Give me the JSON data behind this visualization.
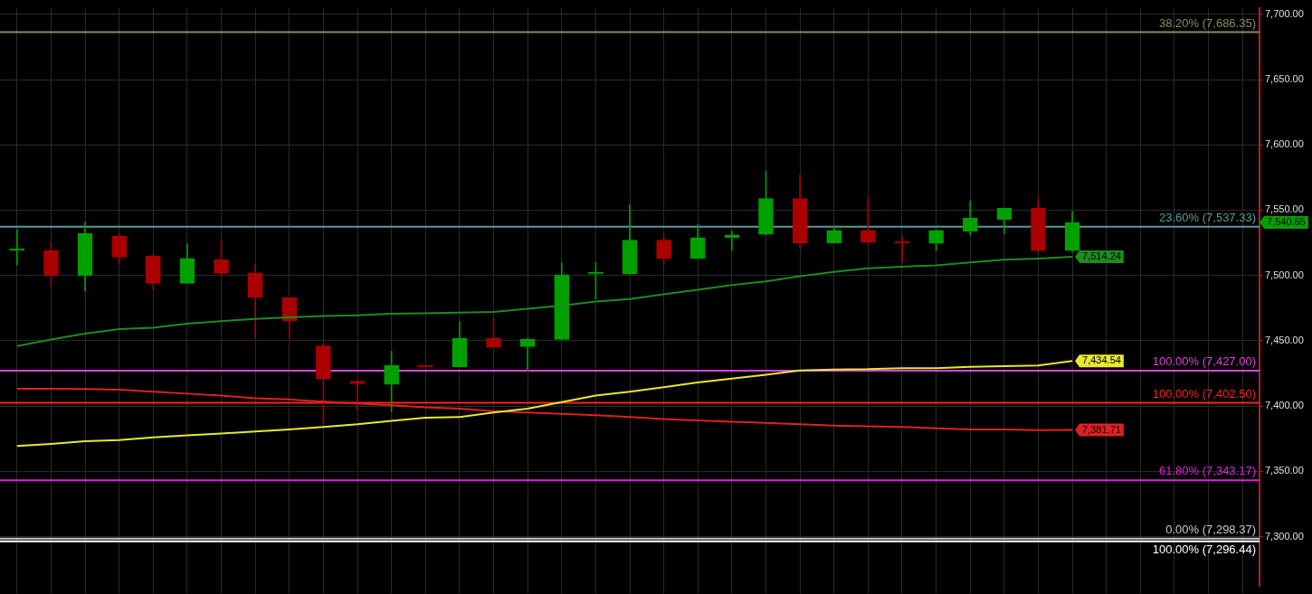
{
  "chart_data": {
    "type": "candlestick",
    "categories": [
      null,
      null,
      null,
      null,
      null,
      null,
      null,
      null,
      null,
      null,
      null,
      null,
      null,
      null,
      null,
      null,
      null,
      null,
      null,
      null,
      null,
      null,
      null,
      null,
      null,
      null,
      null,
      null,
      null,
      null,
      null,
      null,
      null,
      null,
      null,
      null,
      null
    ],
    "ohlc": [
      [
        7519,
        7535,
        7508,
        7519.5
      ],
      [
        7519,
        7526,
        7491.5,
        7500
      ],
      [
        7500,
        7541,
        7488,
        7532
      ],
      [
        7530,
        7532,
        7509,
        7514
      ],
      [
        7515,
        7516,
        7489,
        7494
      ],
      [
        7494,
        7524.5,
        7494,
        7513
      ],
      [
        7512,
        7527,
        7499.5,
        7501.5
      ],
      [
        7502,
        7508.5,
        7452,
        7483
      ],
      [
        7483,
        7483,
        7452,
        7465
      ],
      [
        7446,
        7448,
        7387,
        7420.5
      ],
      [
        7419,
        7419,
        7397,
        7417
      ],
      [
        7416.5,
        7442,
        7395.5,
        7431
      ],
      [
        7430.5,
        7430.5,
        7430,
        7430
      ],
      [
        7430,
        7464.5,
        7430,
        7452
      ],
      [
        7452,
        7467,
        7445,
        7445
      ],
      [
        7445.5,
        7452,
        7427,
        7451
      ],
      [
        7451,
        7510,
        7451,
        7500.5
      ],
      [
        7501,
        7510,
        7482,
        7501.5
      ],
      [
        7501,
        7554,
        7501,
        7527
      ],
      [
        7527,
        7531,
        7509,
        7513
      ],
      [
        7513,
        7539,
        7513,
        7529
      ],
      [
        7529,
        7534,
        7519,
        7531
      ],
      [
        7531.5,
        7580,
        7531,
        7559
      ],
      [
        7559,
        7577,
        7521,
        7525
      ],
      [
        7525,
        7538,
        7525,
        7534.5
      ],
      [
        7534.5,
        7559,
        7525,
        7525.5
      ],
      [
        7526,
        7530,
        7510,
        7524.5
      ],
      [
        7524.5,
        7535,
        7519,
        7534.5
      ],
      [
        7534,
        7557,
        7531,
        7544
      ],
      [
        7543,
        7551.5,
        7532,
        7551.5
      ],
      [
        7551.5,
        7559,
        7518,
        7519
      ],
      [
        7519,
        7549,
        7518,
        7540.65
      ],
      null,
      null,
      null,
      null,
      null
    ],
    "colors": [
      "#00a000",
      "#aa0000",
      "#00a000",
      "#aa0000",
      "#aa0000",
      "#00a000",
      "#aa0000",
      "#aa0000",
      "#aa0000",
      "#aa0000",
      "#aa0000",
      "#00a000",
      "#aa0000",
      "#00a000",
      "#aa0000",
      "#00a000",
      "#00a000",
      "#00a000",
      "#00a000",
      "#aa0000",
      "#00a000",
      "#00a000",
      "#00a000",
      "#aa0000",
      "#00a000",
      "#aa0000",
      "#aa0000",
      "#00a000",
      "#00a000",
      "#00a000",
      "#aa0000",
      "#00a000",
      null,
      null,
      null,
      null,
      null
    ],
    "series": [
      {
        "type": "line",
        "color": "#1f8a1f",
        "values": [
          7446,
          7451,
          7455.5,
          7459,
          7460,
          7463,
          7465,
          7466.7,
          7468,
          7469,
          7469.5,
          7470.7,
          7471,
          7471.5,
          7472,
          7474.5,
          7477,
          7480,
          7482,
          7485.5,
          7489,
          7492.7,
          7495.5,
          7499.5,
          7502.7,
          7505.5,
          7506.7,
          7507.8,
          7510,
          7512,
          7513,
          7514.24,
          null,
          null,
          null,
          null,
          null
        ],
        "value_labels": [
          null,
          null,
          null,
          null,
          null,
          null,
          null,
          null,
          null,
          null,
          null,
          null,
          null,
          null,
          null,
          null,
          null,
          null,
          null,
          null,
          null,
          null,
          null,
          null,
          null,
          null,
          null,
          null,
          null,
          null,
          null,
          "7,514.24",
          null,
          null,
          null,
          null,
          null
        ]
      },
      {
        "type": "line",
        "color": "#e8e830",
        "values": [
          7369.5,
          7371,
          7373,
          7374,
          7376,
          7377.5,
          7379,
          7380.5,
          7382,
          7384,
          7386,
          7388.7,
          7391,
          7391.5,
          7395,
          7398,
          7403,
          7408,
          7411,
          7414.5,
          7418,
          7421,
          7424,
          7427.3,
          7428,
          7428.2,
          7429,
          7429,
          7430,
          7430.5,
          7431,
          7434.54,
          null,
          null,
          null,
          null,
          null
        ],
        "value_labels": [
          null,
          null,
          null,
          null,
          null,
          null,
          null,
          null,
          null,
          null,
          null,
          null,
          null,
          null,
          null,
          null,
          null,
          null,
          null,
          null,
          null,
          null,
          null,
          null,
          null,
          null,
          null,
          null,
          null,
          null,
          null,
          "7,434.54",
          null,
          null,
          null,
          null,
          null
        ]
      },
      {
        "type": "line",
        "color": "#e02020",
        "values": [
          7413.3,
          7413.3,
          7413,
          7412.5,
          7411,
          7409.5,
          7408,
          7406,
          7405,
          7403.3,
          7402,
          7400.5,
          7399,
          7398,
          7396,
          7395,
          7394,
          7393,
          7391.5,
          7390,
          7389,
          7388,
          7387,
          7386,
          7385,
          7384.5,
          7384,
          7383,
          7382,
          7382,
          7381.5,
          7381.71,
          null,
          null,
          null,
          null,
          null
        ],
        "value_labels": [
          null,
          null,
          null,
          null,
          null,
          null,
          null,
          null,
          null,
          null,
          null,
          null,
          null,
          null,
          null,
          null,
          null,
          null,
          null,
          null,
          null,
          null,
          null,
          null,
          null,
          null,
          null,
          null,
          null,
          null,
          null,
          "7,381.71",
          null,
          null,
          null,
          null,
          null
        ]
      }
    ],
    "ref_lines": [
      {
        "axis": "y",
        "value": 7686.35,
        "label": "38.20% (7,686.35)",
        "color": "#8c8c5a"
      },
      {
        "axis": "y",
        "value": 7537.33,
        "label": "23.60% (7,537.33)",
        "color": "#5a9a9a"
      },
      {
        "axis": "y",
        "value": 7427,
        "label": "100.00% (7,427.00)",
        "color": "#e040e0"
      },
      {
        "axis": "y",
        "value": 7402.5,
        "label": "100.00% (7,402.50)",
        "color": "#ff2020"
      },
      {
        "axis": "y",
        "value": 7343.17,
        "label": "61.80% (7,343.17)",
        "color": "#e020e0"
      },
      {
        "axis": "y",
        "value": 7298.37,
        "label": "0.00% (7,298.37)",
        "color": "#c8c8c8"
      },
      {
        "axis": "y",
        "value": 7296.44,
        "label": "100.00% (7,296.44)",
        "color": "#ffffff"
      }
    ],
    "annotations": [
      "7,540.65"
    ],
    "ylim": [
      7262,
      7705
    ],
    "yticks": [
      {
        "value": 7300,
        "label": "7,300.00"
      },
      {
        "value": 7350,
        "label": "7,350.00"
      },
      {
        "value": 7400,
        "label": "7,400.00"
      },
      {
        "value": 7450,
        "label": "7,450.00"
      },
      {
        "value": 7500,
        "label": "7,500.00"
      },
      {
        "value": 7550,
        "label": "7,550.00"
      },
      {
        "value": 7600,
        "label": "7,600.00"
      },
      {
        "value": 7650,
        "label": "7,650.00"
      },
      {
        "value": 7700,
        "label": "7,700.00"
      }
    ],
    "grid": true,
    "tick_labels": "y"
  }
}
